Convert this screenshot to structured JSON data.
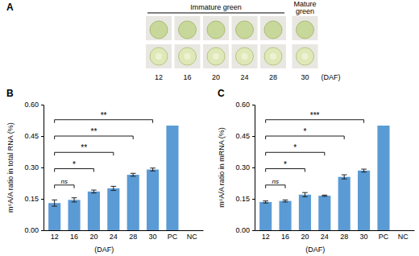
{
  "photo_panel": {
    "label": "A",
    "groups": [
      {
        "label": "Immature green",
        "members": [
          "12",
          "16",
          "20",
          "24",
          "28"
        ]
      },
      {
        "label": "Mature green",
        "members": [
          "30"
        ]
      }
    ],
    "fruit_labels": [
      "12",
      "16",
      "20",
      "24",
      "28",
      "30"
    ],
    "unit_label": "(DAF)"
  },
  "chart_data": [
    {
      "type": "bar",
      "panel_label": "B",
      "y_label": "m⁶A/A ratio in total RNA (%)",
      "x_label": "(DAF)",
      "categories": [
        "12",
        "16",
        "20",
        "24",
        "28",
        "30",
        "PC",
        "NC"
      ],
      "values": [
        0.13,
        0.145,
        0.185,
        0.2,
        0.265,
        0.29,
        0.5,
        0
      ],
      "errors": [
        0.015,
        0.01,
        0.007,
        0.01,
        0.007,
        0.007,
        null,
        null
      ],
      "color": "#5b9bd5",
      "ylim": [
        0,
        0.6
      ],
      "yticks": [
        {
          "value": 0,
          "label": "0.00"
        },
        0.15,
        {
          "value": 0.3,
          "label": "0.30"
        },
        0.45,
        {
          "value": 0.6,
          "label": "0.60"
        }
      ],
      "annotations": [
        {
          "from": "12",
          "to": "16",
          "label": "ns"
        },
        {
          "from": "12",
          "to": "20",
          "label": "*"
        },
        {
          "from": "12",
          "to": "24",
          "label": "**"
        },
        {
          "from": "12",
          "to": "28",
          "label": "**"
        },
        {
          "from": "12",
          "to": "30",
          "label": "**"
        }
      ]
    },
    {
      "type": "bar",
      "panel_label": "C",
      "y_label": "m⁶A/A ratio in mRNA (%)",
      "x_label": "(DAF)",
      "categories": [
        "12",
        "16",
        "20",
        "24",
        "28",
        "30",
        "PC",
        "NC"
      ],
      "values": [
        0.135,
        0.14,
        0.17,
        0.165,
        0.255,
        0.285,
        0.5,
        0
      ],
      "errors": [
        0.005,
        0.005,
        0.01,
        0.003,
        0.01,
        0.007,
        null,
        null
      ],
      "color": "#5b9bd5",
      "ylim": [
        0,
        0.6
      ],
      "yticks": [
        {
          "value": 0,
          "label": "0.00"
        },
        0.15,
        {
          "value": 0.3,
          "label": "0.30"
        },
        0.45,
        {
          "value": 0.6,
          "label": "0.60"
        }
      ],
      "annotations": [
        {
          "from": "12",
          "to": "16",
          "label": "ns"
        },
        {
          "from": "12",
          "to": "20",
          "label": "*"
        },
        {
          "from": "12",
          "to": "24",
          "label": "*"
        },
        {
          "from": "12",
          "to": "28",
          "label": "*"
        },
        {
          "from": "12",
          "to": "30",
          "label": "***"
        }
      ]
    }
  ]
}
